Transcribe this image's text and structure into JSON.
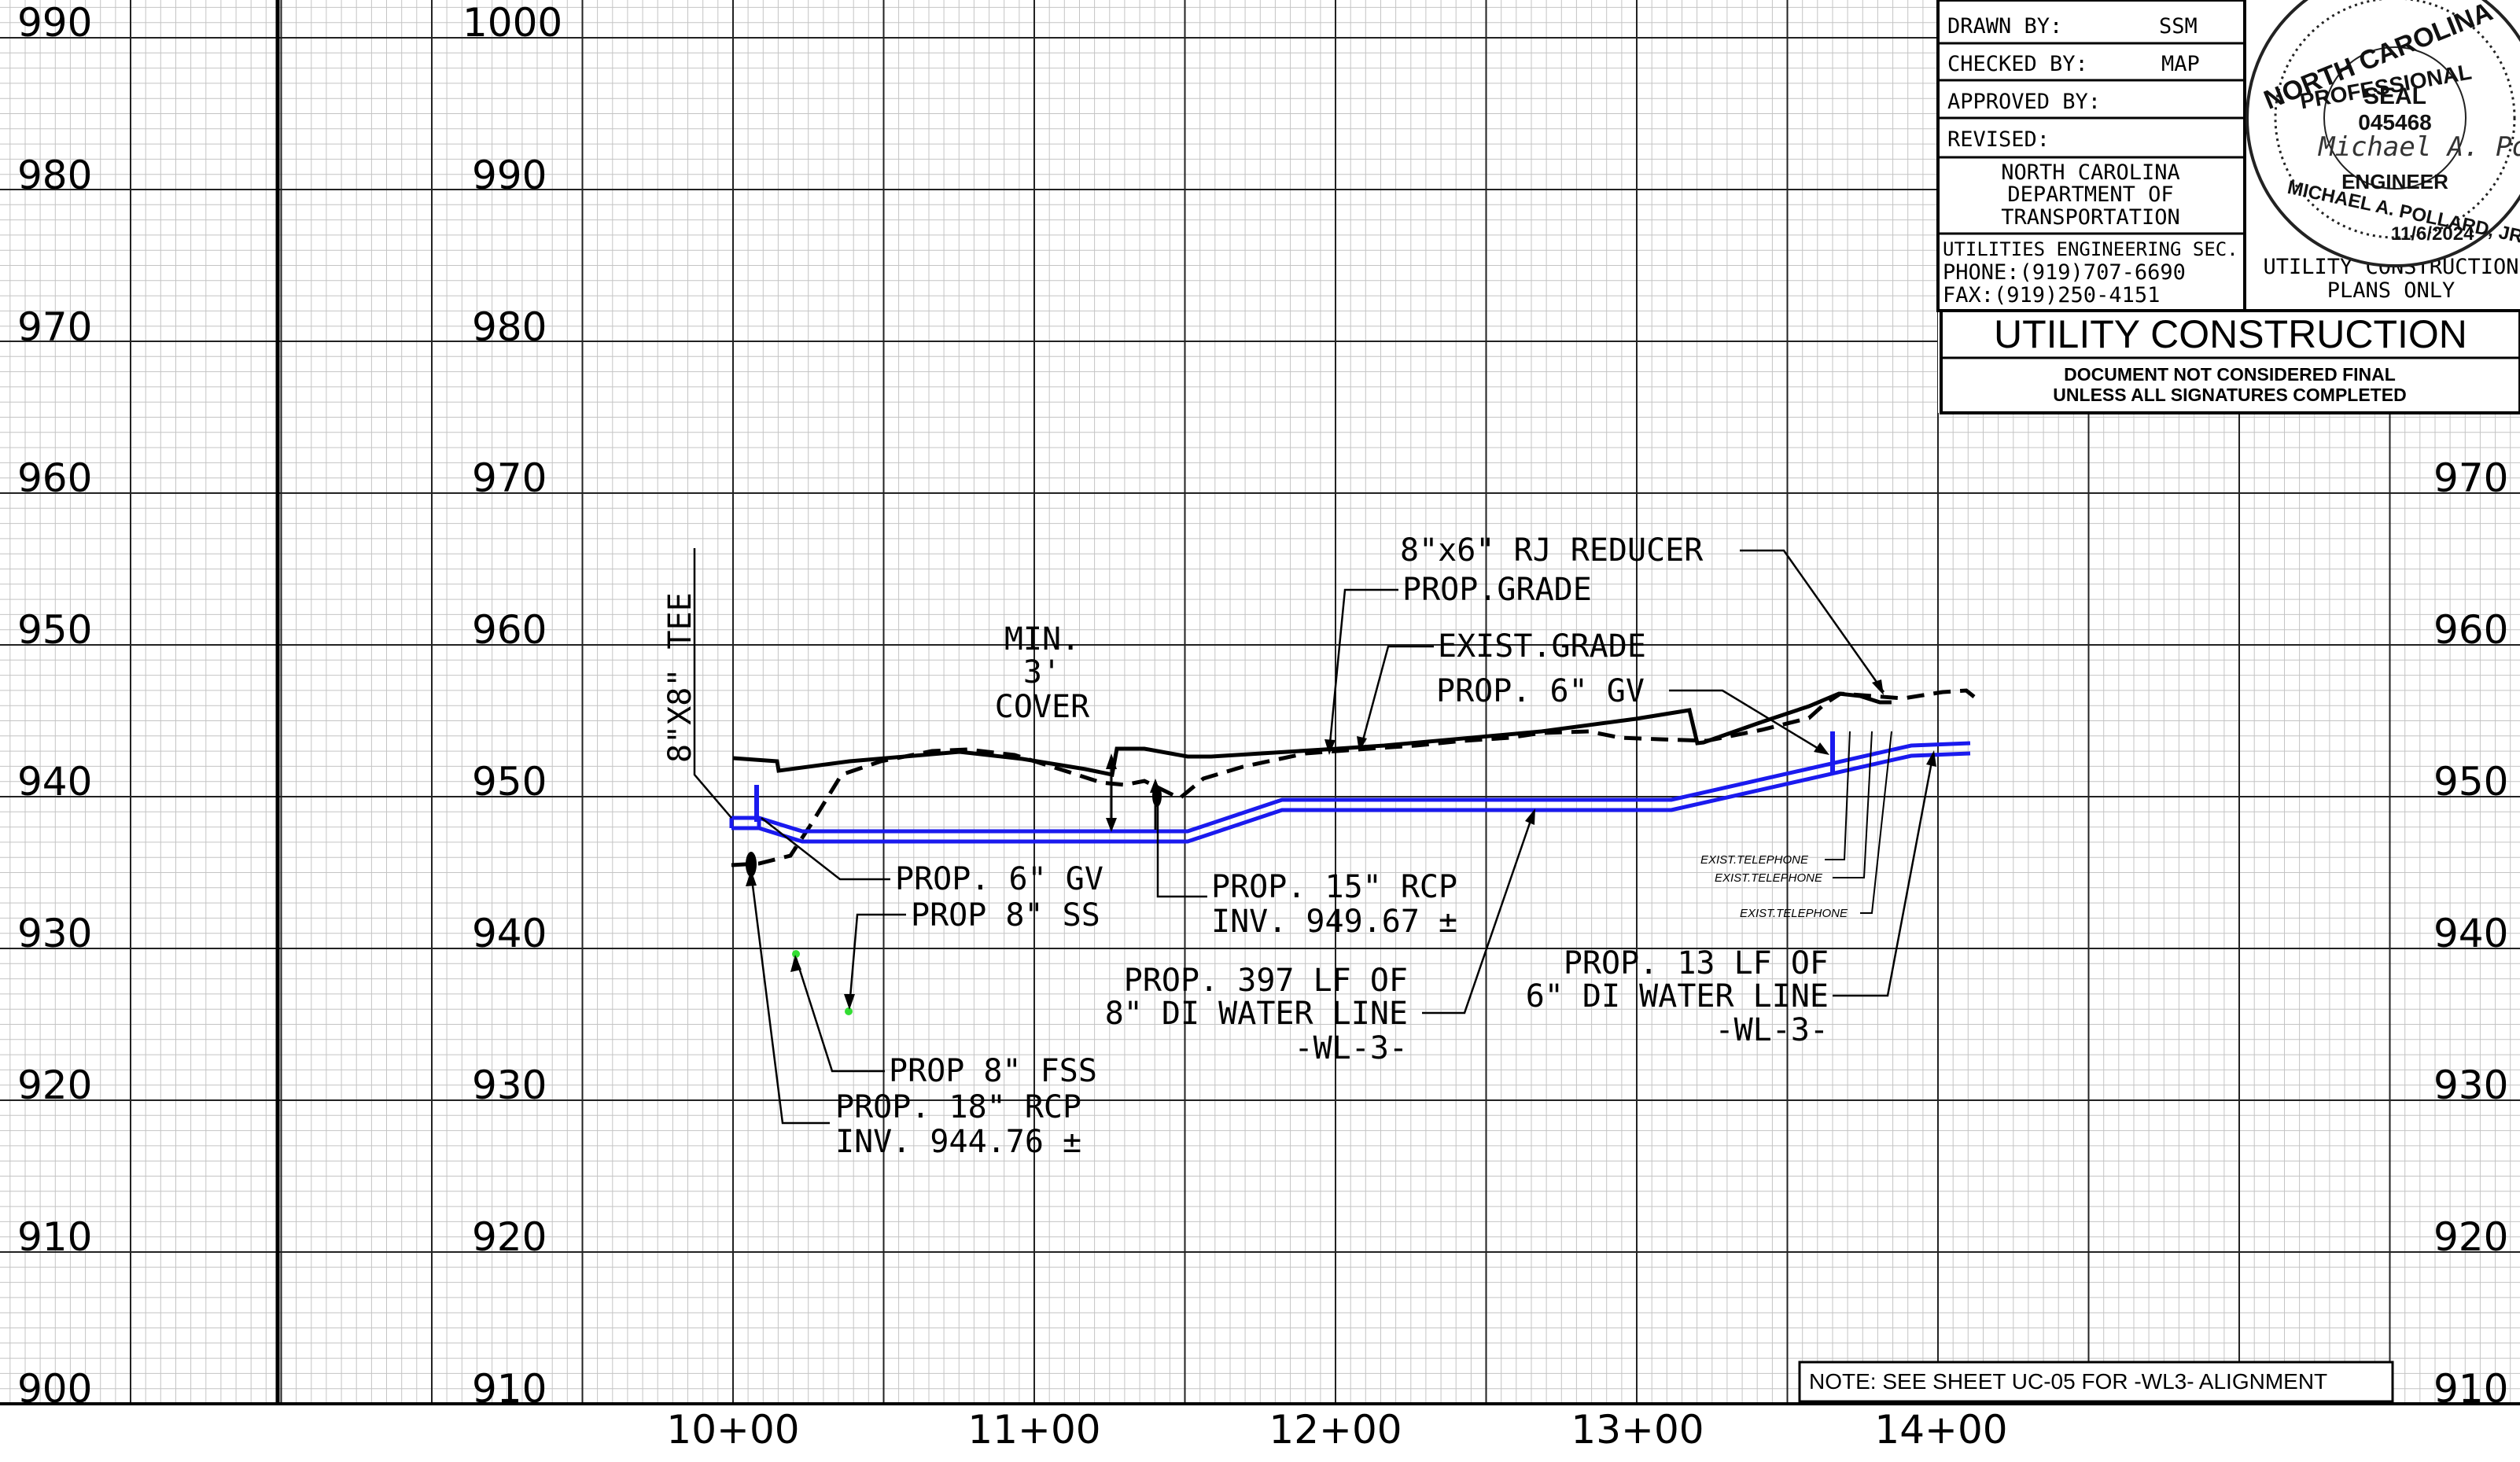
{
  "elevation_axes": {
    "left": [
      "990",
      "980",
      "970",
      "960",
      "950",
      "940",
      "930",
      "920",
      "910",
      "900"
    ],
    "middle": [
      "1000",
      "990",
      "980",
      "970",
      "960",
      "950",
      "940",
      "930",
      "920",
      "910"
    ],
    "right": [
      "970",
      "960",
      "950",
      "940",
      "930",
      "920",
      "910"
    ]
  },
  "stations": [
    "10+00",
    "11+00",
    "12+00",
    "13+00",
    "14+00"
  ],
  "labels": {
    "tee_8x8": "8\"X8\" TEE",
    "min_cover_1": "MIN.",
    "min_cover_2": "3'",
    "min_cover_3": "COVER",
    "rj_reducer": "8\"x6\" RJ REDUCER",
    "prop_grade": "PROP.GRADE",
    "exist_grade": "EXIST.GRADE",
    "prop_6_gv_right": "PROP. 6\" GV",
    "prop_6_gv_left": "PROP. 6\" GV",
    "prop_8_ss": "PROP 8\" SS",
    "prop_15_rcp_1": "PROP. 15\" RCP",
    "prop_15_rcp_2": "INV. 949.67 ±",
    "wl397_1": "PROP. 397 LF OF",
    "wl397_2": "8\" DI WATER LINE",
    "wl397_3": "-WL-3-",
    "wl13_1": "PROP. 13 LF OF",
    "wl13_2": "6\" DI WATER LINE",
    "wl13_3": "-WL-3-",
    "prop_8_fss": "PROP 8\" FSS",
    "prop_18_rcp_1": "PROP. 18\" RCP",
    "prop_18_rcp_2": "INV. 944.76 ±",
    "exist_tel_1": "EXIST.TELEPHONE",
    "exist_tel_2": "EXIST.TELEPHONE",
    "exist_tel_3": "EXIST.TELEPHONE"
  },
  "title_block": {
    "drawn_by_label": "DRAWN BY:",
    "drawn_by": "SSM",
    "checked_by_label": "CHECKED BY:",
    "checked_by": "MAP",
    "approved_by_label": "APPROVED BY:",
    "revised_label": "REVISED:",
    "agency_1": "NORTH CAROLINA",
    "agency_2": "DEPARTMENT OF",
    "agency_3": "TRANSPORTATION",
    "contact_1": "UTILITIES ENGINEERING SEC.",
    "contact_2": "PHONE:(919)707-6690",
    "contact_3": "FAX:(919)250-4151",
    "plans_1": "UTILITY CONSTRUCTION",
    "plans_2": "PLANS ONLY",
    "title": "UTILITY CONSTRUCTION",
    "disclaimer_1": "DOCUMENT NOT CONSIDERED FINAL",
    "disclaimer_2": "UNLESS ALL SIGNATURES COMPLETED"
  },
  "seal": {
    "state": "NORTH CAROLINA",
    "profession": "PROFESSIONAL",
    "word": "SEAL",
    "number": "045468",
    "engineer": "ENGINEER",
    "name": "MICHAEL A. POLLARD, JR.",
    "signature": "Michael A. Pollard",
    "date": "11/6/2024"
  },
  "note": "NOTE: SEE SHEET UC-05 FOR -WL3- ALIGNMENT",
  "colors": {
    "grid_major": "#222222",
    "grid_minor": "#c4c4c4",
    "water_line": "#1a1aee",
    "marker": "#33dd33",
    "ink": "#000000"
  }
}
